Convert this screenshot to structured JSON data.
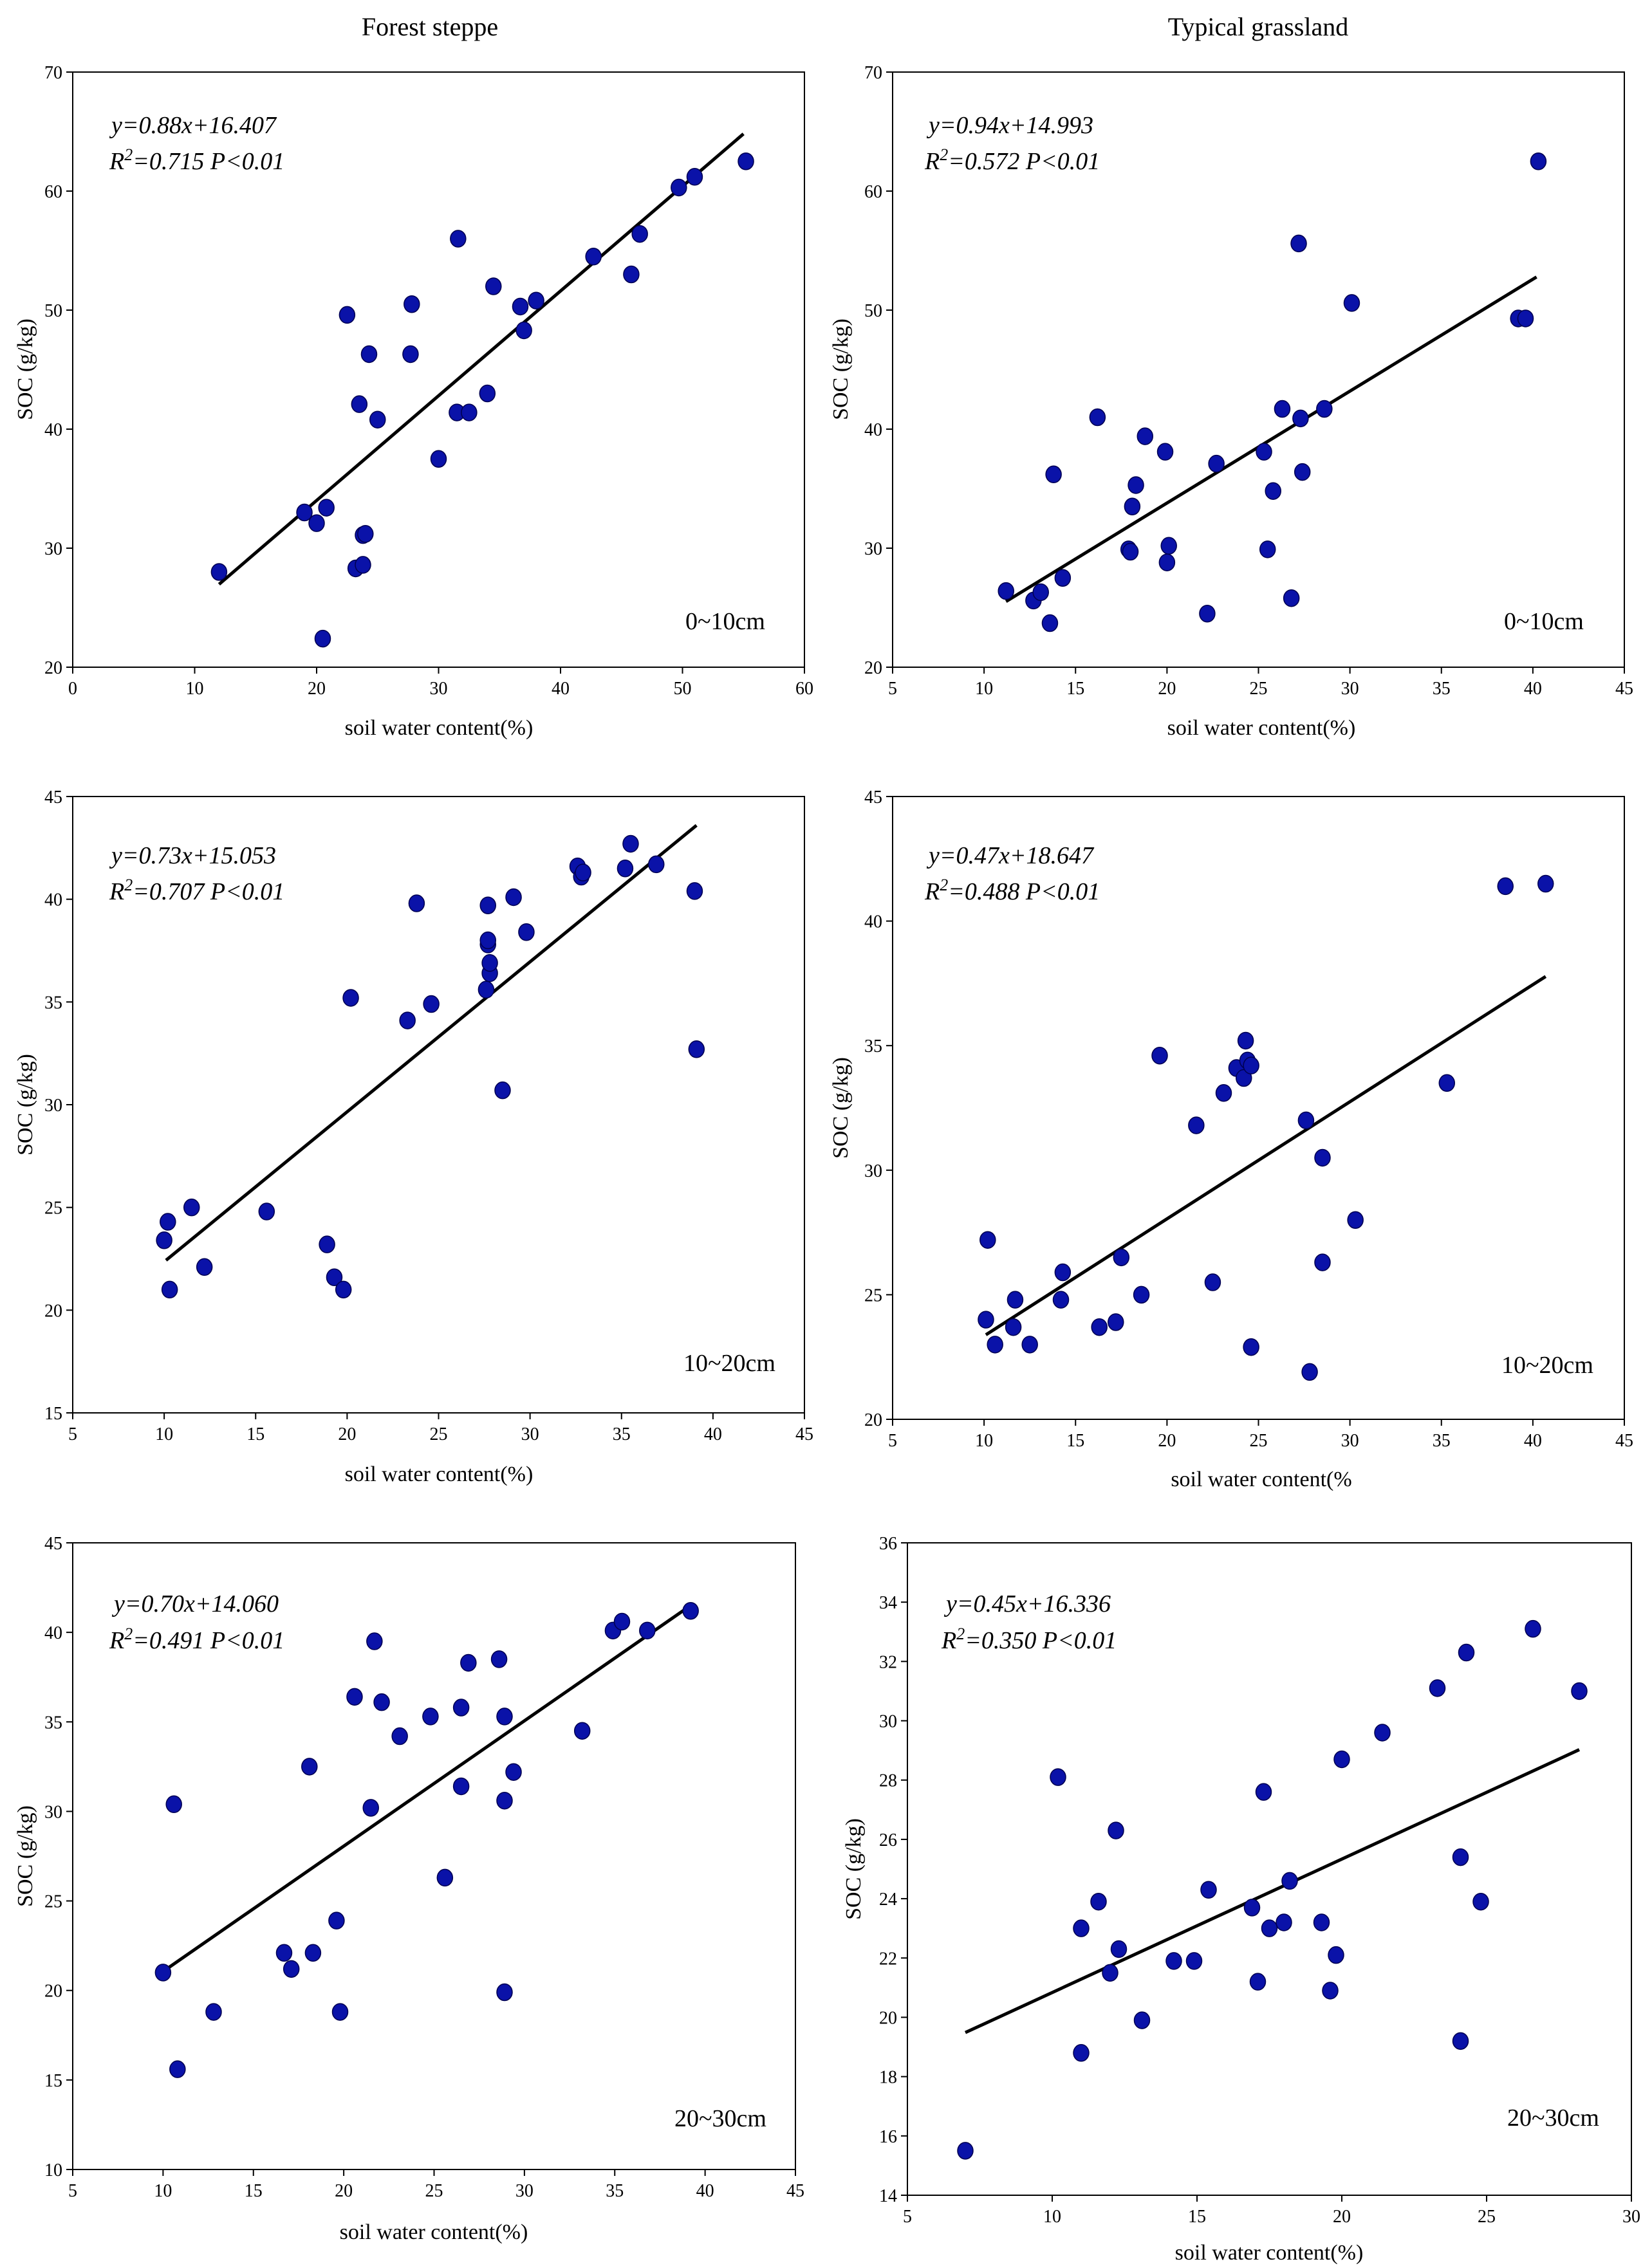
{
  "column_titles": [
    "Forest steppe",
    "Typical grassland"
  ],
  "chart_data": [
    {
      "type": "scatter",
      "column": "Forest steppe",
      "xlabel": "soil water content(%)",
      "ylabel": "SOC (g/kg)",
      "xlim": [
        0,
        60
      ],
      "ylim": [
        20,
        70
      ],
      "xticks": [
        0,
        10,
        20,
        30,
        40,
        50,
        60
      ],
      "yticks": [
        20,
        30,
        40,
        50,
        60,
        70
      ],
      "depth": "0~10cm",
      "equation": "y=0.88x+16.407",
      "r2_prefix": "R",
      "r2_sup": "2",
      "r2_value": "=0.715 P<0.01",
      "fit": {
        "slope": 0.88,
        "intercept": 16.407,
        "x_range": [
          12,
          55
        ]
      },
      "points": [
        [
          12,
          28
        ],
        [
          19,
          33
        ],
        [
          20,
          32.1
        ],
        [
          20.8,
          33.4
        ],
        [
          20.5,
          22.4
        ],
        [
          22.5,
          49.6
        ],
        [
          23.2,
          28.3
        ],
        [
          23.5,
          42.1
        ],
        [
          23.8,
          28.6
        ],
        [
          23.8,
          31.1
        ],
        [
          24,
          31.2
        ],
        [
          24.3,
          46.3
        ],
        [
          25,
          40.8
        ],
        [
          27.7,
          46.3
        ],
        [
          27.8,
          50.5
        ],
        [
          30,
          37.5
        ],
        [
          31.5,
          41.4
        ],
        [
          31.6,
          56
        ],
        [
          32.5,
          41.4
        ],
        [
          34,
          43
        ],
        [
          34.5,
          52
        ],
        [
          36.7,
          50.3
        ],
        [
          37,
          48.3
        ],
        [
          38,
          50.8
        ],
        [
          42.7,
          54.5
        ],
        [
          45.8,
          53
        ],
        [
          46.5,
          56.4
        ],
        [
          49.7,
          60.3
        ],
        [
          51,
          61.2
        ],
        [
          55.2,
          62.5
        ]
      ]
    },
    {
      "type": "scatter",
      "column": "Typical grassland",
      "xlabel": "soil water content(%)",
      "ylabel": "SOC (g/kg)",
      "xlim": [
        5,
        45
      ],
      "ylim": [
        20,
        70
      ],
      "xticks": [
        5,
        10,
        15,
        20,
        25,
        30,
        35,
        40,
        45
      ],
      "yticks": [
        20,
        30,
        40,
        50,
        60,
        70
      ],
      "depth": "0~10cm",
      "equation": "y=0.94x+14.993",
      "r2_prefix": "R",
      "r2_sup": "2",
      "r2_value": "=0.572 P<0.01",
      "fit": {
        "slope": 0.94,
        "intercept": 14.993,
        "x_range": [
          11.2,
          40.2
        ]
      },
      "points": [
        [
          11.2,
          26.4
        ],
        [
          12.7,
          25.6
        ],
        [
          13.1,
          26.3
        ],
        [
          13.6,
          23.7
        ],
        [
          13.8,
          36.2
        ],
        [
          14.3,
          27.5
        ],
        [
          16.2,
          41
        ],
        [
          17.9,
          29.9
        ],
        [
          18,
          29.7
        ],
        [
          18.1,
          33.5
        ],
        [
          18.3,
          35.3
        ],
        [
          18.8,
          39.4
        ],
        [
          19.9,
          38.1
        ],
        [
          20,
          28.8
        ],
        [
          20.1,
          30.2
        ],
        [
          22.2,
          24.5
        ],
        [
          22.7,
          37.1
        ],
        [
          25.3,
          38.1
        ],
        [
          25.5,
          29.9
        ],
        [
          25.8,
          34.8
        ],
        [
          26.3,
          41.7
        ],
        [
          26.8,
          25.8
        ],
        [
          27.2,
          55.6
        ],
        [
          27.3,
          40.9
        ],
        [
          27.4,
          36.4
        ],
        [
          28.6,
          41.7
        ],
        [
          30.1,
          50.6
        ],
        [
          39.2,
          49.3
        ],
        [
          39.6,
          49.3
        ],
        [
          40.3,
          62.5
        ]
      ]
    },
    {
      "type": "scatter",
      "column": "Forest steppe",
      "xlabel": "soil water content(%)",
      "ylabel": "SOC (g/kg)",
      "xlim": [
        5,
        45
      ],
      "ylim": [
        15,
        45
      ],
      "xticks": [
        5,
        10,
        15,
        20,
        25,
        30,
        35,
        40,
        45
      ],
      "yticks": [
        15,
        20,
        25,
        30,
        35,
        40,
        45
      ],
      "depth": "10~20cm",
      "equation": "y=0.73x+15.053",
      "r2_prefix": "R",
      "r2_sup": "2",
      "r2_value": "=0.707 P<0.01",
      "fit": {
        "slope": 0.73,
        "intercept": 15.053,
        "x_range": [
          10.1,
          39.1
        ]
      },
      "points": [
        [
          10,
          23.4
        ],
        [
          10.2,
          24.3
        ],
        [
          10.3,
          21
        ],
        [
          11.5,
          25
        ],
        [
          12.2,
          22.1
        ],
        [
          15.6,
          24.8
        ],
        [
          18.9,
          23.2
        ],
        [
          19.3,
          21.6
        ],
        [
          19.8,
          21
        ],
        [
          20.2,
          35.2
        ],
        [
          23.3,
          34.1
        ],
        [
          23.8,
          39.8
        ],
        [
          24.6,
          34.9
        ],
        [
          27.6,
          35.6
        ],
        [
          27.7,
          37.8
        ],
        [
          27.7,
          38
        ],
        [
          27.7,
          39.7
        ],
        [
          27.8,
          36.4
        ],
        [
          27.8,
          36.9
        ],
        [
          28.5,
          30.7
        ],
        [
          29.1,
          40.1
        ],
        [
          29.8,
          38.4
        ],
        [
          32.6,
          41.6
        ],
        [
          32.8,
          41.1
        ],
        [
          32.9,
          41.3
        ],
        [
          35.2,
          41.5
        ],
        [
          35.5,
          42.7
        ],
        [
          36.9,
          41.7
        ],
        [
          39,
          40.4
        ],
        [
          39.1,
          32.7
        ]
      ]
    },
    {
      "type": "scatter",
      "column": "Typical grassland",
      "xlabel": "soil water content(%",
      "ylabel": "SOC (g/kg)",
      "xlim": [
        5,
        45
      ],
      "ylim": [
        20,
        45
      ],
      "xticks": [
        5,
        10,
        15,
        20,
        25,
        30,
        35,
        40,
        45
      ],
      "yticks": [
        20,
        25,
        30,
        35,
        40,
        45
      ],
      "depth": "10~20cm",
      "equation": "y=0.47x+18.647",
      "r2_prefix": "R",
      "r2_sup": "2",
      "r2_value": "=0.488 P<0.01",
      "fit": {
        "slope": 0.47,
        "intercept": 18.647,
        "x_range": [
          10.1,
          40.7
        ]
      },
      "points": [
        [
          10.1,
          24
        ],
        [
          10.2,
          27.2
        ],
        [
          10.6,
          23
        ],
        [
          11.6,
          23.7
        ],
        [
          11.7,
          24.8
        ],
        [
          12.5,
          23
        ],
        [
          14.2,
          24.8
        ],
        [
          14.3,
          25.9
        ],
        [
          16.3,
          23.7
        ],
        [
          17.2,
          23.9
        ],
        [
          17.5,
          26.5
        ],
        [
          18.6,
          25
        ],
        [
          19.6,
          34.6
        ],
        [
          21.6,
          31.8
        ],
        [
          22.5,
          25.5
        ],
        [
          23.1,
          33.1
        ],
        [
          23.8,
          34.1
        ],
        [
          24.2,
          33.7
        ],
        [
          24.3,
          35.2
        ],
        [
          24.4,
          34.4
        ],
        [
          24.6,
          22.9
        ],
        [
          24.6,
          34.2
        ],
        [
          27.6,
          32
        ],
        [
          27.8,
          21.9
        ],
        [
          28.5,
          30.5
        ],
        [
          28.5,
          26.3
        ],
        [
          30.3,
          28
        ],
        [
          35.3,
          33.5
        ],
        [
          38.5,
          41.4
        ],
        [
          40.7,
          41.5
        ]
      ]
    },
    {
      "type": "scatter",
      "column": "Forest steppe",
      "xlabel": "soil water content(%)",
      "ylabel": "SOC (g/kg)",
      "xlim": [
        5,
        45
      ],
      "ylim": [
        10,
        45
      ],
      "xticks": [
        5,
        10,
        15,
        20,
        25,
        30,
        35,
        40,
        45
      ],
      "yticks": [
        10,
        15,
        20,
        25,
        30,
        35,
        40,
        45
      ],
      "depth": "20~30cm",
      "equation": "y=0.70x+14.060",
      "r2_prefix": "R",
      "r2_sup": "2",
      "r2_value": "=0.491 P<0.01",
      "fit": {
        "slope": 0.7,
        "intercept": 14.06,
        "x_range": [
          10.1,
          39.1
        ]
      },
      "points": [
        [
          10,
          21
        ],
        [
          10.6,
          30.4
        ],
        [
          10.8,
          15.6
        ],
        [
          12.8,
          18.8
        ],
        [
          16.7,
          22.1
        ],
        [
          17.1,
          21.2
        ],
        [
          18.1,
          32.5
        ],
        [
          18.3,
          22.1
        ],
        [
          19.6,
          23.9
        ],
        [
          19.8,
          18.8
        ],
        [
          20.6,
          36.4
        ],
        [
          21.5,
          30.2
        ],
        [
          21.7,
          39.5
        ],
        [
          22.1,
          36.1
        ],
        [
          23.1,
          34.2
        ],
        [
          24.8,
          35.3
        ],
        [
          25.6,
          26.3
        ],
        [
          26.5,
          35.8
        ],
        [
          26.5,
          31.4
        ],
        [
          26.9,
          38.3
        ],
        [
          28.6,
          38.5
        ],
        [
          28.9,
          35.3
        ],
        [
          28.9,
          30.6
        ],
        [
          28.9,
          19.9
        ],
        [
          29.4,
          32.2
        ],
        [
          33.2,
          34.5
        ],
        [
          34.9,
          40.1
        ],
        [
          35.4,
          40.6
        ],
        [
          36.8,
          40.1
        ],
        [
          39.2,
          41.2
        ]
      ]
    },
    {
      "type": "scatter",
      "column": "Typical grassland",
      "xlabel": "soil water content(%)",
      "ylabel": "SOC (g/kg)",
      "xlim": [
        5,
        30
      ],
      "ylim": [
        14,
        36
      ],
      "xticks": [
        5,
        10,
        15,
        20,
        25,
        30
      ],
      "yticks": [
        14,
        16,
        18,
        20,
        22,
        24,
        26,
        28,
        30,
        32,
        34,
        36
      ],
      "depth": "20~30cm",
      "equation": "y=0.45x+16.336",
      "r2_prefix": "R",
      "r2_sup": "2",
      "r2_value": "=0.350 P<0.01",
      "fit": {
        "slope": 0.45,
        "intercept": 16.336,
        "x_range": [
          7,
          28.2
        ]
      },
      "points": [
        [
          7,
          15.5
        ],
        [
          10.2,
          28.1
        ],
        [
          11,
          18.8
        ],
        [
          11,
          23
        ],
        [
          11.6,
          23.9
        ],
        [
          12,
          21.5
        ],
        [
          12.2,
          26.3
        ],
        [
          12.3,
          22.3
        ],
        [
          13.1,
          19.9
        ],
        [
          14.2,
          21.9
        ],
        [
          14.9,
          21.9
        ],
        [
          15.4,
          24.3
        ],
        [
          16.9,
          23.7
        ],
        [
          17.1,
          21.2
        ],
        [
          17.3,
          27.6
        ],
        [
          17.5,
          23
        ],
        [
          18,
          23.2
        ],
        [
          18.2,
          24.6
        ],
        [
          19.3,
          23.2
        ],
        [
          19.6,
          20.9
        ],
        [
          19.8,
          22.1
        ],
        [
          20,
          28.7
        ],
        [
          21.4,
          29.6
        ],
        [
          23.3,
          31.1
        ],
        [
          24.1,
          19.2
        ],
        [
          24.1,
          25.4
        ],
        [
          24.3,
          32.3
        ],
        [
          24.8,
          23.9
        ],
        [
          26.6,
          33.1
        ],
        [
          28.2,
          31
        ]
      ]
    }
  ]
}
